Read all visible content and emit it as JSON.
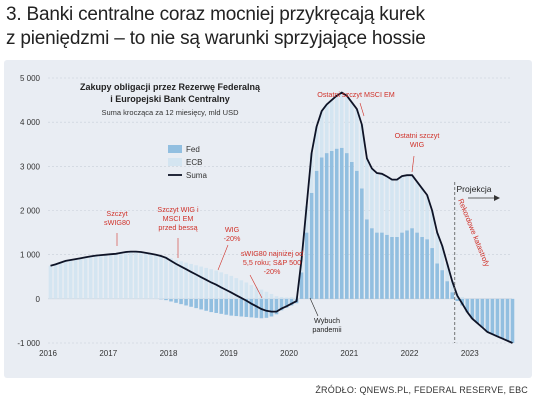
{
  "title_lines": [
    "3. Banki centralne coraz mocniej przykręcają kurek",
    "z pieniędzmi – to nie są warunki sprzyjające hossie"
  ],
  "source": "ŹRÓDŁO: QNEWS.PL, FEDERAL RESERVE, EBC",
  "chart_data": {
    "type": "bar",
    "title": "Zakupy obligacji przez Rezerwę Federalną i Europejski Bank Centralny",
    "title_lines": [
      "Zakupy obligacji przez Rezerwę Federalną",
      "i Europejski Bank Centralny"
    ],
    "subtitle": "Suma krocząca za 12 miesięcy, mld USD",
    "ylim": [
      -1000,
      5000
    ],
    "yticks": [
      -1000,
      0,
      1000,
      2000,
      3000,
      4000,
      5000
    ],
    "ytick_labels": [
      "-1 000",
      "0",
      "1 000",
      "2 000",
      "3 000",
      "4 000",
      "5 000"
    ],
    "xticks": [
      2016,
      2017,
      2018,
      2019,
      2020,
      2021,
      2022,
      2023
    ],
    "xlim": [
      2016.0,
      2023.7
    ],
    "grid": true,
    "legend": {
      "position": "upper-center",
      "entries": [
        "Fed",
        "ECB",
        "Suma"
      ]
    },
    "colors": {
      "fed": "#92bfe0",
      "ecb": "#d4e5f1",
      "suma": "#0e1326",
      "annotation": "#d0322a",
      "dark_annotation": "#222222"
    },
    "months": [
      "2016-01",
      "2016-02",
      "2016-03",
      "2016-04",
      "2016-05",
      "2016-06",
      "2016-07",
      "2016-08",
      "2016-09",
      "2016-10",
      "2016-11",
      "2016-12",
      "2017-01",
      "2017-02",
      "2017-03",
      "2017-04",
      "2017-05",
      "2017-06",
      "2017-07",
      "2017-08",
      "2017-09",
      "2017-10",
      "2017-11",
      "2017-12",
      "2018-01",
      "2018-02",
      "2018-03",
      "2018-04",
      "2018-05",
      "2018-06",
      "2018-07",
      "2018-08",
      "2018-09",
      "2018-10",
      "2018-11",
      "2018-12",
      "2019-01",
      "2019-02",
      "2019-03",
      "2019-04",
      "2019-05",
      "2019-06",
      "2019-07",
      "2019-08",
      "2019-09",
      "2019-10",
      "2019-11",
      "2019-12",
      "2020-01",
      "2020-02",
      "2020-03",
      "2020-04",
      "2020-05",
      "2020-06",
      "2020-07",
      "2020-08",
      "2020-09",
      "2020-10",
      "2020-11",
      "2020-12",
      "2021-01",
      "2021-02",
      "2021-03",
      "2021-04",
      "2021-05",
      "2021-06",
      "2021-07",
      "2021-08",
      "2021-09",
      "2021-10",
      "2021-11",
      "2021-12",
      "2022-01",
      "2022-02",
      "2022-03",
      "2022-04",
      "2022-05",
      "2022-06",
      "2022-07",
      "2022-08",
      "2022-09",
      "2022-10",
      "2022-11",
      "2022-12",
      "2023-01",
      "2023-02",
      "2023-03",
      "2023-04",
      "2023-05",
      "2023-06",
      "2023-07",
      "2023-08",
      "2023-09"
    ],
    "series": [
      {
        "name": "Fed",
        "values": [
          0,
          0,
          0,
          0,
          0,
          0,
          0,
          0,
          0,
          0,
          0,
          0,
          0,
          0,
          0,
          0,
          0,
          0,
          0,
          0,
          0,
          0,
          -10,
          -30,
          -60,
          -90,
          -120,
          -150,
          -180,
          -210,
          -240,
          -270,
          -300,
          -320,
          -340,
          -360,
          -380,
          -390,
          -400,
          -410,
          -420,
          -430,
          -440,
          -430,
          -400,
          -350,
          -260,
          -200,
          -150,
          -100,
          600,
          1500,
          2400,
          2900,
          3200,
          3300,
          3350,
          3400,
          3420,
          3300,
          3100,
          2900,
          2500,
          1800,
          1600,
          1500,
          1500,
          1450,
          1400,
          1400,
          1500,
          1550,
          1600,
          1500,
          1400,
          1350,
          1150,
          800,
          650,
          400,
          150,
          -50,
          -150,
          -300,
          -450,
          -550,
          -650,
          -750,
          -800,
          -850,
          -900,
          -950,
          -1000
        ]
      },
      {
        "name": "ECB",
        "values": [
          750,
          780,
          820,
          860,
          880,
          900,
          920,
          940,
          960,
          980,
          990,
          1000,
          1010,
          1020,
          1040,
          1060,
          1070,
          1070,
          1060,
          1040,
          1020,
          1000,
          980,
          960,
          920,
          880,
          850,
          820,
          790,
          760,
          730,
          700,
          670,
          640,
          600,
          560,
          520,
          470,
          420,
          370,
          310,
          260,
          210,
          160,
          110,
          60,
          40,
          30,
          40,
          50,
          300,
          600,
          900,
          1000,
          1050,
          1100,
          1150,
          1200,
          1250,
          1300,
          1350,
          1400,
          1450,
          1380,
          1350,
          1350,
          1330,
          1320,
          1300,
          1300,
          1280,
          1250,
          1200,
          1150,
          1100,
          1000,
          850,
          700,
          550,
          400,
          250,
          120,
          40,
          0,
          0,
          0,
          0,
          0,
          0,
          0,
          0,
          0,
          0
        ]
      },
      {
        "name": "Suma",
        "values": [
          750,
          780,
          820,
          860,
          880,
          900,
          920,
          940,
          960,
          980,
          990,
          1000,
          1010,
          1020,
          1040,
          1060,
          1070,
          1070,
          1060,
          1040,
          1020,
          1000,
          970,
          930,
          860,
          790,
          730,
          670,
          610,
          550,
          490,
          430,
          370,
          320,
          260,
          200,
          140,
          80,
          20,
          -40,
          -110,
          -170,
          -230,
          -270,
          -290,
          -290,
          -220,
          -170,
          -110,
          -50,
          900,
          2100,
          3300,
          3900,
          4250,
          4400,
          4500,
          4600,
          4670,
          4600,
          4450,
          4300,
          3950,
          3180,
          2950,
          2850,
          2830,
          2770,
          2700,
          2700,
          2780,
          2800,
          2800,
          2650,
          2500,
          2350,
          2000,
          1500,
          1200,
          800,
          400,
          70,
          -110,
          -300,
          -450,
          -550,
          -650,
          -750,
          -800,
          -850,
          -900,
          -950,
          -1000
        ]
      }
    ],
    "annotations": [
      {
        "text": [
          "Szczyt",
          "sWIG80"
        ],
        "color": "red"
      },
      {
        "text": [
          "Szczyt WIG i",
          "MSCI EM",
          "przed bessą"
        ],
        "color": "red"
      },
      {
        "text": [
          "WIG",
          "-20%"
        ],
        "color": "red"
      },
      {
        "text": [
          "sWIG80 najniżej od",
          "5,5 roku; S&P 500",
          "-20%"
        ],
        "color": "red"
      },
      {
        "text": [
          "Wybuch",
          "pandemii"
        ],
        "color": "dark"
      },
      {
        "text": [
          "Ostatni szczyt MSCI EM"
        ],
        "color": "red"
      },
      {
        "text": [
          "Ostatni szczyt",
          "WIG"
        ],
        "color": "red"
      },
      {
        "text": [
          "Rekordowe katastrofy"
        ],
        "color": "red"
      },
      {
        "text": [
          "Projekcja"
        ],
        "color": "dark"
      }
    ]
  }
}
